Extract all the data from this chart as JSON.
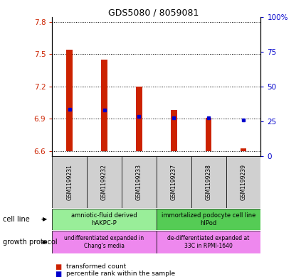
{
  "title": "GDS5080 / 8059081",
  "samples": [
    "GSM1199231",
    "GSM1199232",
    "GSM1199233",
    "GSM1199237",
    "GSM1199238",
    "GSM1199239"
  ],
  "bar_values": [
    7.54,
    7.45,
    7.2,
    6.98,
    6.91,
    6.62
  ],
  "bar_bottom": 6.6,
  "percentile_pct": [
    37,
    36,
    33,
    26,
    24,
    22
  ],
  "percentile_left_vals": [
    6.99,
    6.98,
    6.92,
    6.905,
    6.905,
    6.89
  ],
  "ylim_left": [
    6.55,
    7.85
  ],
  "ylim_right": [
    0,
    100
  ],
  "yticks_left": [
    6.6,
    6.9,
    7.2,
    7.5,
    7.8
  ],
  "yticks_right": [
    0,
    25,
    50,
    75,
    100
  ],
  "ytick_labels_left": [
    "6.6",
    "6.9",
    "7.2",
    "7.5",
    "7.8"
  ],
  "ytick_labels_right": [
    "0",
    "25",
    "50",
    "75",
    "100%"
  ],
  "bar_color": "#cc2200",
  "percentile_color": "#0000cc",
  "cell_line_groups": [
    {
      "label": "amniotic-fluid derived\nhAKPC-P",
      "start": 0,
      "end": 3,
      "color": "#99ee99"
    },
    {
      "label": "immortalized podocyte cell line\nhIPod",
      "start": 3,
      "end": 6,
      "color": "#55cc55"
    }
  ],
  "growth_protocol_groups": [
    {
      "label": "undifferentiated expanded in\nChang's media",
      "start": 0,
      "end": 3,
      "color": "#ee88ee"
    },
    {
      "label": "de-differentiated expanded at\n33C in RPMI-1640",
      "start": 3,
      "end": 6,
      "color": "#ee88ee"
    }
  ],
  "legend_bar_label": "transformed count",
  "legend_pct_label": "percentile rank within the sample",
  "annotation_cell_line": "cell line",
  "annotation_growth": "growth protocol",
  "tick_color_left": "#cc2200",
  "tick_color_right": "#0000cc",
  "bar_width": 0.18,
  "sample_label_fontsize": 5.5,
  "cell_line_fontsize": 6,
  "growth_fontsize": 5.5
}
